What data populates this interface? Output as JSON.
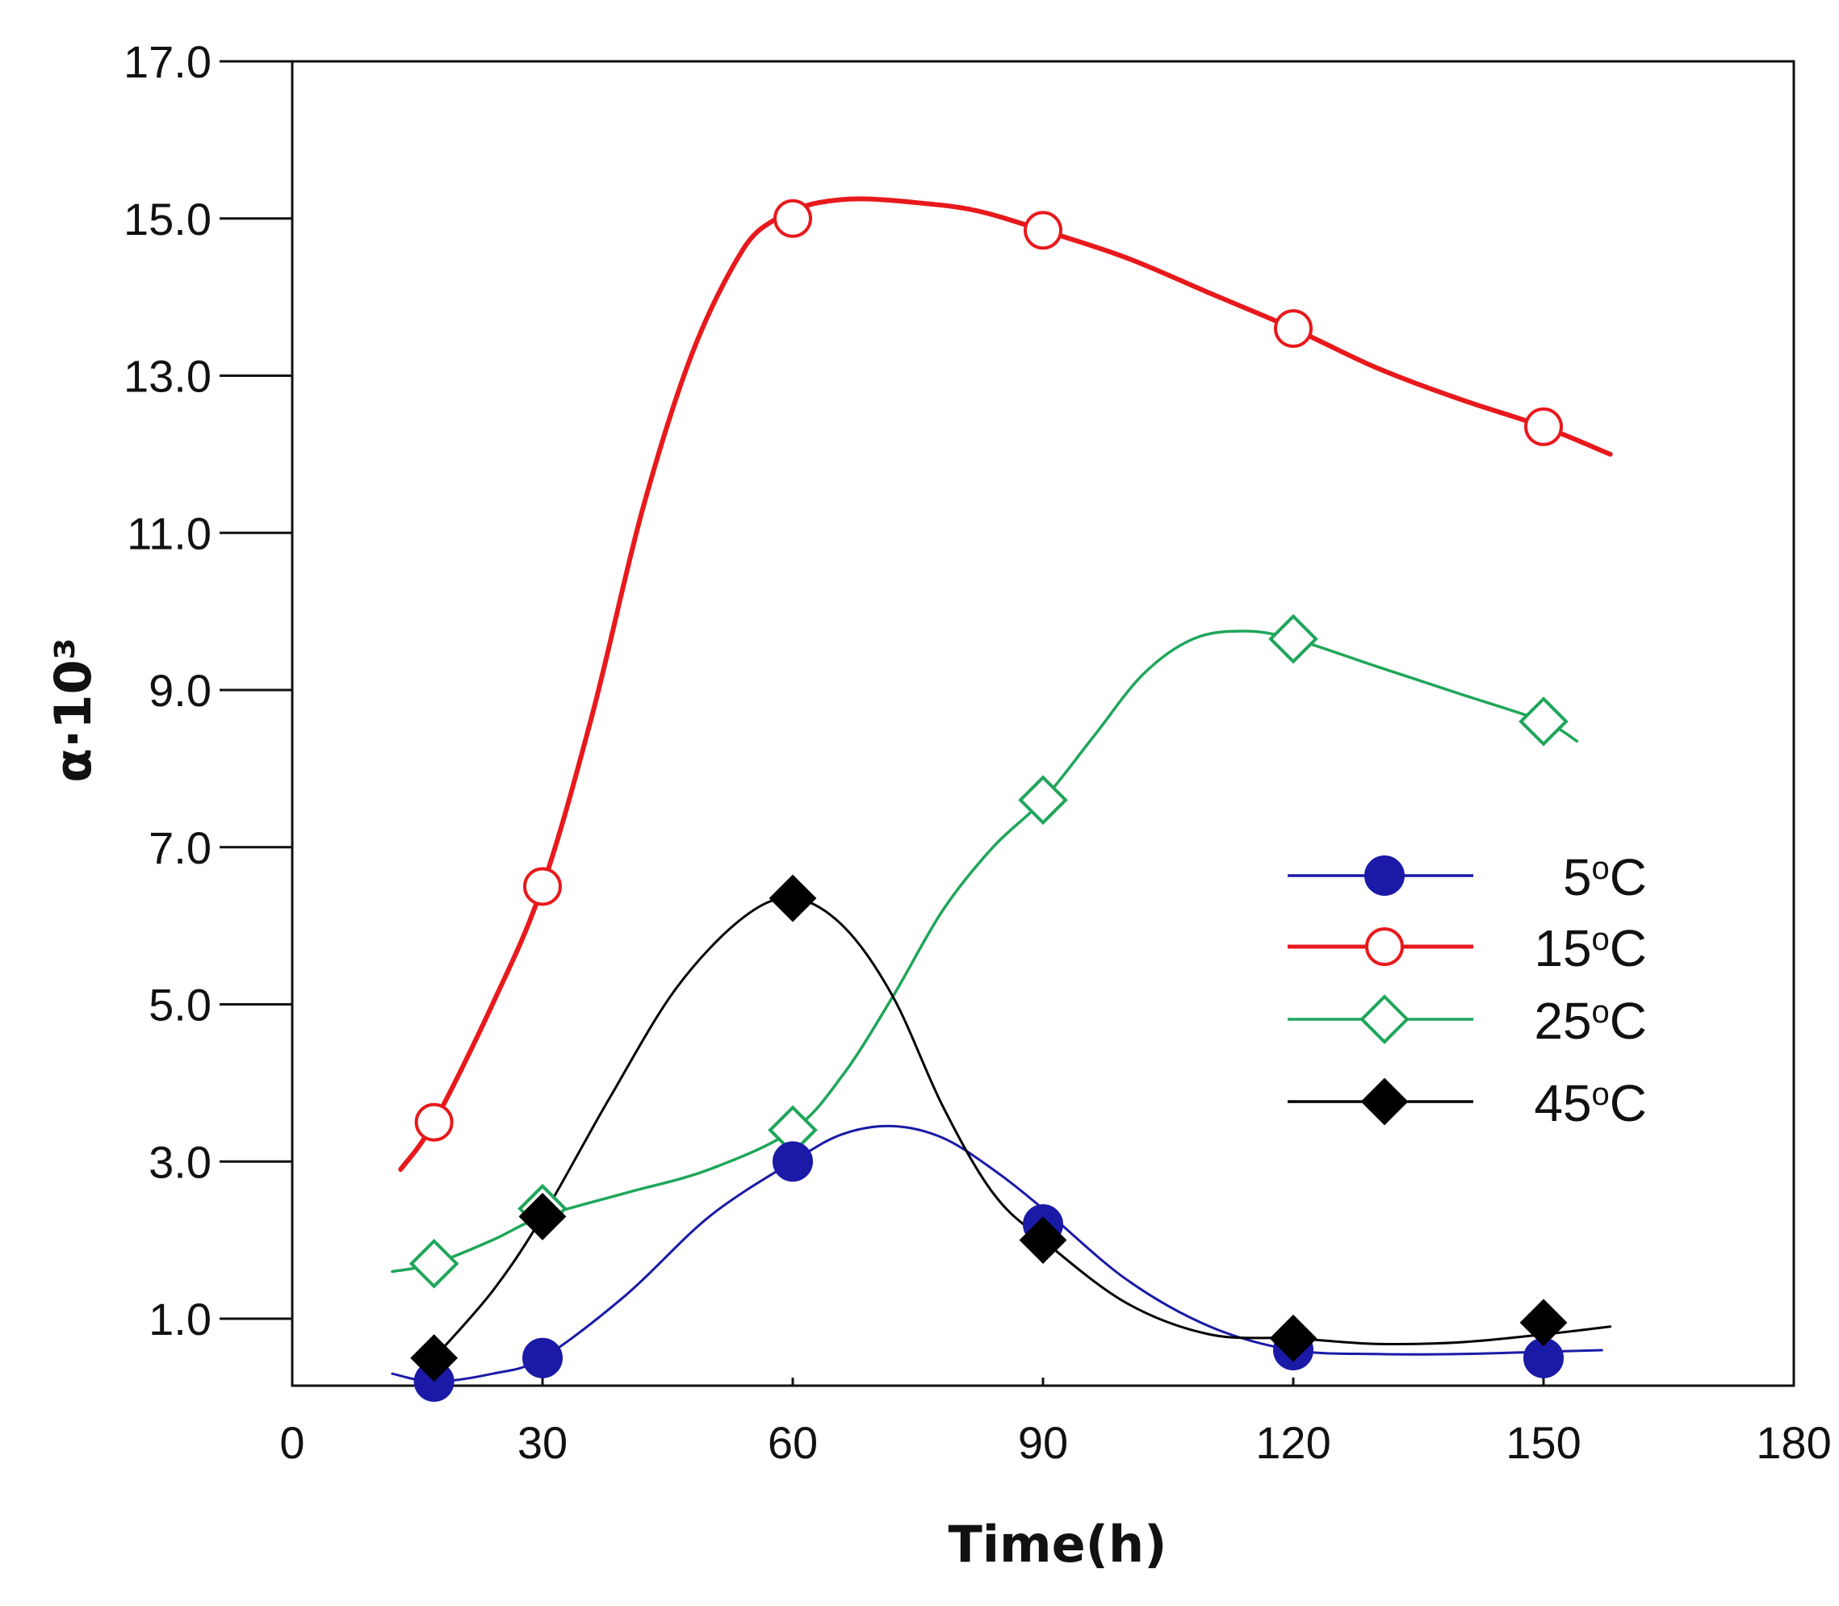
{
  "chart_data": {
    "type": "line",
    "title": "",
    "xlabel": "Time(h)",
    "ylabel": "α·10³",
    "xlim": [
      0,
      180
    ],
    "ylim": [
      0.2,
      17.0
    ],
    "xticks": [
      0,
      30,
      60,
      90,
      120,
      150,
      180
    ],
    "xtick_labels": [
      "0",
      "30",
      "60",
      "90",
      "120",
      "150",
      "180"
    ],
    "yticks": [
      1.0,
      3.0,
      5.0,
      7.0,
      9.0,
      11.0,
      13.0,
      15.0,
      17.0
    ],
    "ytick_labels": [
      "1.0",
      "3.0",
      "5.0",
      "7.0",
      "9.0",
      "11.0",
      "13.0",
      "15.0",
      "17.0"
    ],
    "legend_position": "center-right",
    "series": [
      {
        "name": "5°C",
        "label_main": "5",
        "label_deg": "o",
        "label_unit": "C",
        "color": "#1a1aa6",
        "marker": "filled-circle",
        "x": [
          17,
          30,
          60,
          90,
          120,
          150
        ],
        "y": [
          0.2,
          0.5,
          3.0,
          2.2,
          0.6,
          0.5
        ],
        "curve_x": [
          12,
          17,
          24,
          30,
          40,
          50,
          60,
          66,
          72,
          78,
          84,
          90,
          100,
          110,
          120,
          130,
          140,
          150,
          157
        ],
        "curve_y": [
          0.3,
          0.2,
          0.3,
          0.5,
          1.3,
          2.3,
          3.0,
          3.35,
          3.45,
          3.3,
          2.9,
          2.4,
          1.5,
          0.9,
          0.6,
          0.55,
          0.55,
          0.58,
          0.6
        ]
      },
      {
        "name": "15°C",
        "label_main": "15",
        "label_deg": "o",
        "label_unit": "C",
        "color": "#e8191c",
        "marker": "open-circle",
        "x": [
          17,
          30,
          60,
          90,
          120,
          150
        ],
        "y": [
          3.5,
          6.5,
          15.0,
          14.85,
          13.6,
          12.35
        ],
        "curve_x": [
          13,
          17,
          24,
          30,
          36,
          42,
          48,
          54,
          58,
          60,
          63,
          68,
          75,
          82,
          90,
          100,
          110,
          120,
          130,
          140,
          150,
          158
        ],
        "curve_y": [
          2.9,
          3.5,
          5.0,
          6.5,
          8.7,
          11.3,
          13.3,
          14.6,
          15.0,
          15.1,
          15.2,
          15.25,
          15.2,
          15.1,
          14.85,
          14.5,
          14.05,
          13.6,
          13.1,
          12.7,
          12.35,
          12.0
        ]
      },
      {
        "name": "25°C",
        "label_main": "25",
        "label_deg": "o",
        "label_unit": "C",
        "color": "#1fa65a",
        "marker": "open-diamond",
        "x": [
          17,
          30,
          60,
          90,
          120,
          150
        ],
        "y": [
          1.7,
          2.4,
          3.4,
          7.6,
          9.65,
          8.6
        ],
        "curve_x": [
          12,
          17,
          24,
          30,
          40,
          50,
          60,
          66,
          72,
          78,
          84,
          90,
          96,
          102,
          108,
          114,
          120,
          130,
          140,
          150,
          154
        ],
        "curve_y": [
          1.6,
          1.7,
          2.0,
          2.3,
          2.6,
          2.9,
          3.4,
          4.1,
          5.1,
          6.2,
          7.0,
          7.6,
          8.4,
          9.2,
          9.65,
          9.75,
          9.65,
          9.3,
          8.95,
          8.6,
          8.35
        ]
      },
      {
        "name": "45°C",
        "label_main": "45",
        "label_deg": "o",
        "label_unit": "C",
        "color": "#000000",
        "marker": "filled-diamond",
        "x": [
          17,
          30,
          60,
          90,
          120,
          150
        ],
        "y": [
          0.5,
          2.3,
          6.35,
          2.0,
          0.75,
          0.95
        ],
        "curve_x": [
          17,
          24,
          30,
          38,
          46,
          54,
          60,
          66,
          72,
          78,
          84,
          90,
          100,
          110,
          120,
          130,
          140,
          150,
          158
        ],
        "curve_y": [
          0.5,
          1.35,
          2.3,
          3.8,
          5.2,
          6.1,
          6.35,
          6.0,
          5.1,
          3.7,
          2.6,
          2.0,
          1.2,
          0.8,
          0.75,
          0.68,
          0.7,
          0.8,
          0.9
        ]
      }
    ]
  }
}
